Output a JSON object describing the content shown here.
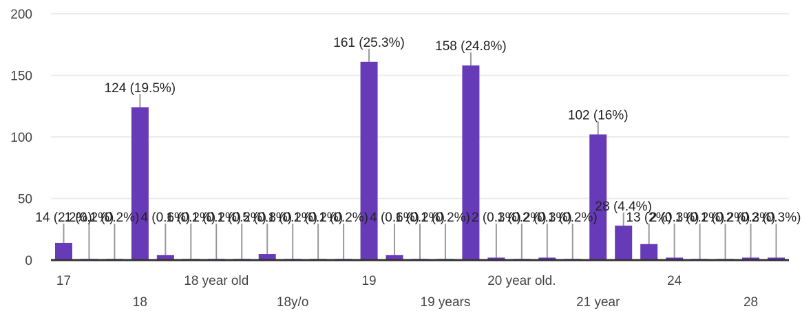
{
  "chart_data": {
    "type": "bar",
    "ylim": [
      0,
      200
    ],
    "yticks": [
      0,
      50,
      100,
      150,
      200
    ],
    "grid": true,
    "bar_color": "#673ab7",
    "categories": [
      "17",
      "",
      "",
      "18",
      "",
      "",
      "18 year old",
      "",
      "",
      "18y/o",
      "",
      "",
      "19",
      "",
      "",
      "19 years",
      "",
      "",
      "20 year old.",
      "",
      "",
      "21 year",
      "",
      "",
      "24",
      "",
      "",
      "28",
      ""
    ],
    "values": [
      14,
      1,
      1,
      124,
      4,
      1,
      1,
      1,
      5,
      1,
      1,
      1,
      161,
      4,
      1,
      1,
      158,
      2,
      1,
      2,
      1,
      102,
      28,
      13,
      2,
      1,
      1,
      2,
      2
    ],
    "data_labels": [
      "14 (2.2%)",
      "1 (0.2%)",
      "1 (0.2%)",
      "124 (19.5%)",
      "4 (0.6%)",
      "1 (0.2%)",
      "1 (0.2%)",
      "1 (0.2%)",
      "5 (0.8%)",
      "1 (0.2%)",
      "1 (0.2%)",
      "1 (0.2%)",
      "161 (25.3%)",
      "4 (0.6%)",
      "1 (0.2%)",
      "1 (0.2%)",
      "158 (24.8%)",
      "2 (0.3%)",
      "1 (0.2%)",
      "2 (0.3%)",
      "1 (0.2%)",
      "102 (16%)",
      "28 (4.4%)",
      "13 (2%)",
      "2 (0.3%)",
      "1 (0.2%)",
      "1 (0.2%)",
      "2 (0.3%)",
      "2 (0.3%)"
    ]
  }
}
